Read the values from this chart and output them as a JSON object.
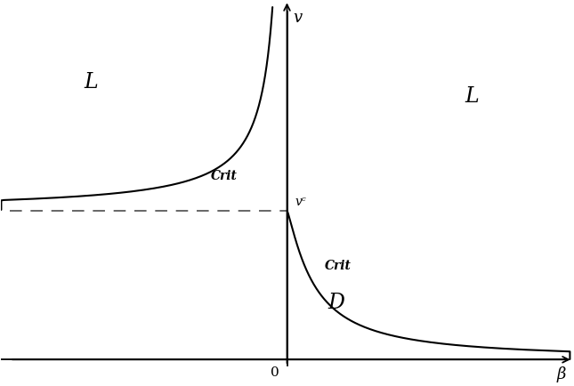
{
  "background_color": "#ffffff",
  "curve_color": "#000000",
  "dashed_color": "#666666",
  "label_L_left": "L",
  "label_L_right": "L",
  "label_D": "D",
  "label_crit_left": "Crit",
  "label_crit_right": "Crit",
  "label_nu_c": "vᶜ",
  "label_nu": "v",
  "label_beta": "β",
  "label_origin": "0",
  "nu_c": 0.44,
  "xlim": [
    -1.05,
    1.05
  ],
  "ylim": [
    -0.06,
    1.06
  ],
  "figsize": [
    6.45,
    4.35
  ],
  "dpi": 100
}
